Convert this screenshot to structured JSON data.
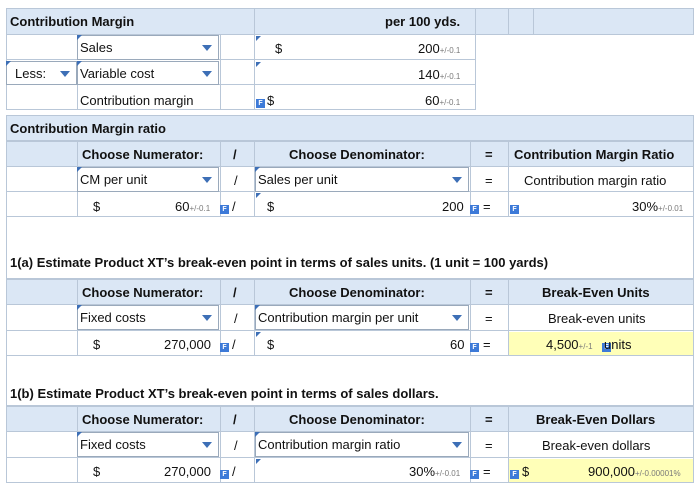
{
  "contribution_margin": {
    "title": "Contribution Margin",
    "column_header": "per 100 yds.",
    "rows": [
      {
        "prefix": "",
        "label": "Sales",
        "currency": "$",
        "value": "200",
        "tolerance": "+/-0.1"
      },
      {
        "prefix": "Less:",
        "label": "Variable cost",
        "currency": "",
        "value": "140",
        "tolerance": "+/-0.1"
      },
      {
        "prefix": "",
        "label": "Contribution margin",
        "currency": "$",
        "value": "60",
        "tolerance": "+/-0.1"
      }
    ]
  },
  "cm_ratio": {
    "title": "Contribution Margin ratio",
    "numerator_header": "Choose Numerator:",
    "slash": "/",
    "denominator_header": "Choose Denominator:",
    "equals": "=",
    "result_header": "Contribution Margin Ratio",
    "numerator_select": "CM per unit",
    "denominator_select": "Sales per unit",
    "result_label": "Contribution margin ratio",
    "num_currency": "$",
    "num_value": "60",
    "num_tol": "+/-0.1",
    "den_currency": "$",
    "den_value": "200",
    "result_value": "30%",
    "result_tol": "+/-0.01"
  },
  "break_even_units": {
    "title": "1(a) Estimate Product XT’s break-even point in terms of sales units. (1 unit = 100 yards)",
    "numerator_header": "Choose Numerator:",
    "slash": "/",
    "denominator_header": "Choose Denominator:",
    "equals": "=",
    "result_header": "Break-Even Units",
    "numerator_select": "Fixed costs",
    "denominator_select": "Contribution margin per unit",
    "result_label": "Break-even units",
    "num_currency": "$",
    "num_value": "270,000",
    "den_currency": "$",
    "den_value": "60",
    "result_value": "4,500",
    "result_tol": "+/-1",
    "result_unit": "units"
  },
  "break_even_dollars": {
    "title": "1(b) Estimate Product XT’s break-even point in terms of sales dollars.",
    "numerator_header": "Choose Numerator:",
    "slash": "/",
    "denominator_header": "Choose Denominator:",
    "equals": "=",
    "result_header": "Break-Even Dollars",
    "numerator_select": "Fixed costs",
    "denominator_select": "Contribution margin ratio",
    "result_label": "Break-even dollars",
    "num_currency": "$",
    "num_value": "270,000",
    "den_value": "30%",
    "den_tol": "+/-0.01",
    "result_currency": "$",
    "result_value": "900,000",
    "result_tol": "+/-0.00001%"
  },
  "icons": {
    "formula_icon": "F"
  },
  "colors": {
    "header_bg": "#dbe7f5",
    "highlight_bg": "#ffffb8",
    "accent": "#3d6fb6"
  }
}
